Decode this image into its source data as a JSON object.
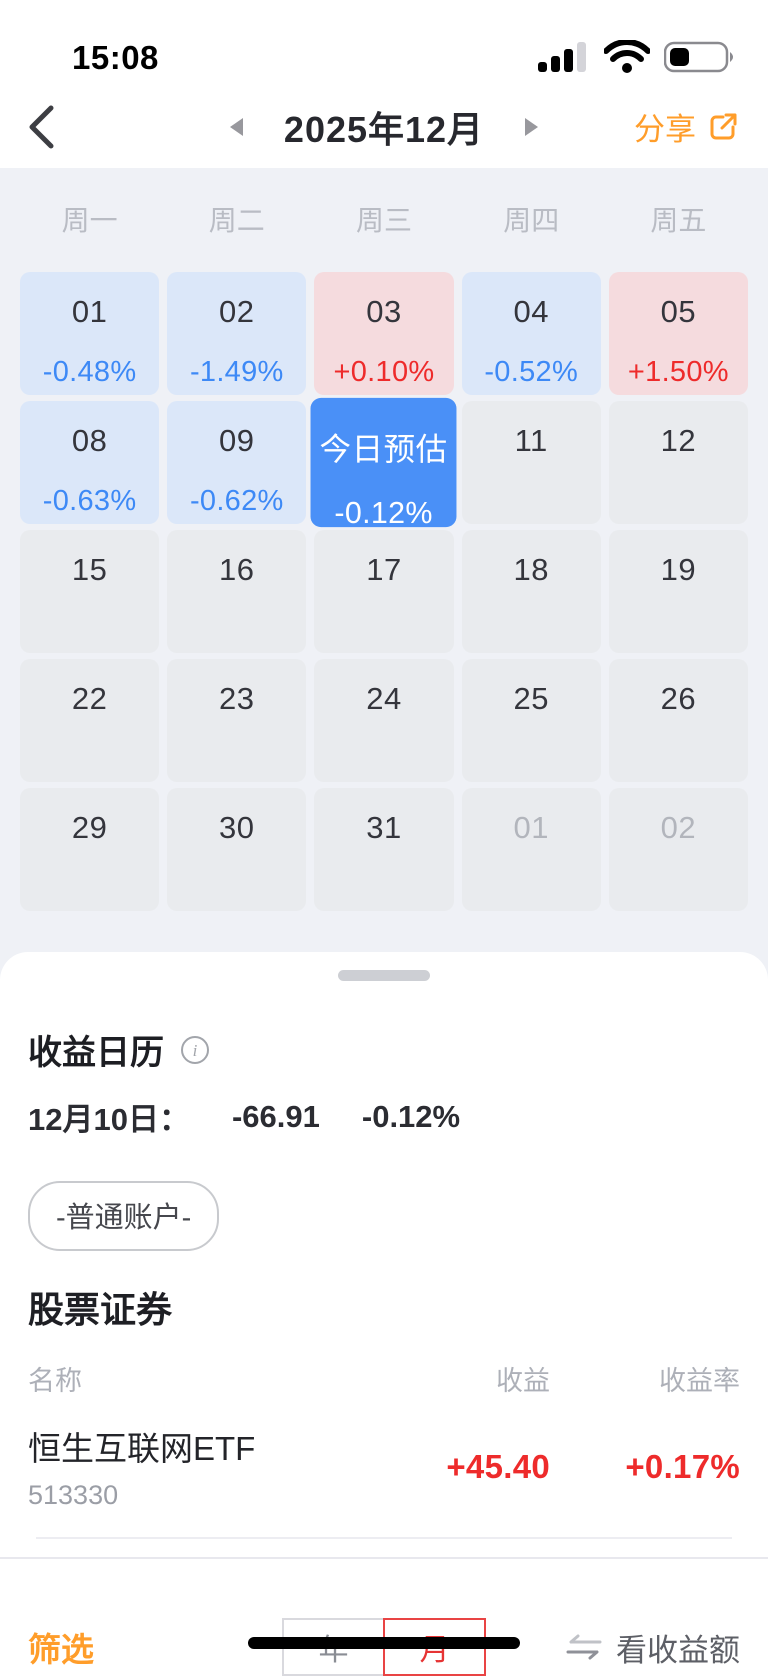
{
  "status_bar": {
    "time": "15:08"
  },
  "nav": {
    "title": "2025年12月",
    "share_label": "分享"
  },
  "calendar": {
    "weekdays": [
      "周一",
      "周二",
      "周三",
      "周四",
      "周五"
    ],
    "weeks": [
      [
        {
          "day": "01",
          "pct": "-0.48%",
          "type": "loss"
        },
        {
          "day": "02",
          "pct": "-1.49%",
          "type": "loss"
        },
        {
          "day": "03",
          "pct": "+0.10%",
          "type": "gain"
        },
        {
          "day": "04",
          "pct": "-0.52%",
          "type": "loss"
        },
        {
          "day": "05",
          "pct": "+1.50%",
          "type": "gain"
        }
      ],
      [
        {
          "day": "08",
          "pct": "-0.63%",
          "type": "loss"
        },
        {
          "day": "09",
          "pct": "-0.62%",
          "type": "loss"
        },
        {
          "day": "今日预估",
          "pct": "-0.12%",
          "type": "today"
        },
        {
          "day": "11",
          "type": "plain"
        },
        {
          "day": "12",
          "type": "plain"
        }
      ],
      [
        {
          "day": "15",
          "type": "plain"
        },
        {
          "day": "16",
          "type": "plain"
        },
        {
          "day": "17",
          "type": "plain"
        },
        {
          "day": "18",
          "type": "plain"
        },
        {
          "day": "19",
          "type": "plain"
        }
      ],
      [
        {
          "day": "22",
          "type": "plain"
        },
        {
          "day": "23",
          "type": "plain"
        },
        {
          "day": "24",
          "type": "plain"
        },
        {
          "day": "25",
          "type": "plain"
        },
        {
          "day": "26",
          "type": "plain"
        }
      ],
      [
        {
          "day": "29",
          "type": "plain"
        },
        {
          "day": "30",
          "type": "plain"
        },
        {
          "day": "31",
          "type": "plain"
        },
        {
          "day": "01",
          "type": "muted"
        },
        {
          "day": "02",
          "type": "muted"
        }
      ]
    ],
    "colors": {
      "loss_bg": "#dbe7f9",
      "loss_text": "#3d89f6",
      "gain_bg": "#f5dbde",
      "gain_text": "#ee2b2b",
      "today_bg": "#4a90f7",
      "today_text": "#ffffff",
      "plain_bg": "#e9ebee",
      "calendar_bg": "#eff1f6"
    }
  },
  "sheet": {
    "title": "收益日历",
    "summary": {
      "date_label": "12月10日：",
      "amount": "-66.91",
      "pct": "-0.12%"
    },
    "account_tag": "-普通账户-",
    "section_title": "股票证券",
    "table": {
      "headers": [
        "名称",
        "收益",
        "收益率"
      ],
      "rows": [
        {
          "name": "恒生互联网ETF",
          "code": "513330",
          "profit": "+45.40",
          "rate": "+0.17%"
        }
      ]
    },
    "footer": {
      "filter_label": "筛选",
      "period_options": [
        {
          "label": "年",
          "selected": false
        },
        {
          "label": "月",
          "selected": true
        }
      ],
      "toggle_label": "看收益额"
    },
    "colors": {
      "accent_orange": "#ff9d2a",
      "value_red": "#ee2b2b",
      "selected_red": "#e63434"
    }
  }
}
